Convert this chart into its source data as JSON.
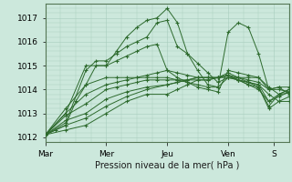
{
  "background_color": "#cce8dc",
  "grid_color": "#a8ccbc",
  "line_color": "#2d6a2d",
  "marker_color": "#2d6a2d",
  "xlabel": "Pression niveau de la mer( hPa )",
  "ylim": [
    1011.8,
    1017.6
  ],
  "yticks": [
    1012,
    1013,
    1014,
    1015,
    1016,
    1017
  ],
  "xlim": [
    0,
    96
  ],
  "xtick_positions": [
    0,
    24,
    48,
    72,
    90
  ],
  "xtick_labels": [
    "Mar",
    "Mer",
    "Jeu",
    "Ven",
    "S"
  ],
  "series": [
    [
      0,
      1012.1,
      4,
      1012.3,
      8,
      1012.5,
      12,
      1013.5,
      16,
      1014.2,
      20,
      1015.0,
      24,
      1015.0,
      28,
      1015.6,
      32,
      1016.2,
      36,
      1016.6,
      40,
      1016.9,
      44,
      1017.0,
      48,
      1017.4,
      52,
      1016.8,
      56,
      1015.5,
      60,
      1014.8,
      64,
      1014.2,
      68,
      1014.1,
      72,
      1016.4,
      76,
      1016.8,
      80,
      1016.6,
      84,
      1015.5,
      88,
      1014.0,
      92,
      1014.1,
      96,
      1013.8
    ],
    [
      0,
      1012.1,
      8,
      1012.6,
      16,
      1014.8,
      20,
      1015.2,
      24,
      1015.2,
      28,
      1015.5,
      32,
      1015.8,
      36,
      1016.0,
      40,
      1016.2,
      44,
      1016.8,
      48,
      1016.9,
      52,
      1015.8,
      56,
      1015.5,
      60,
      1015.1,
      64,
      1014.7,
      68,
      1014.3,
      72,
      1014.5,
      76,
      1014.5,
      80,
      1014.5,
      84,
      1014.5,
      88,
      1014.0,
      92,
      1014.0,
      96,
      1013.9
    ],
    [
      0,
      1012.1,
      8,
      1013.0,
      16,
      1015.0,
      24,
      1015.0,
      28,
      1015.2,
      32,
      1015.4,
      36,
      1015.6,
      40,
      1015.8,
      44,
      1015.9,
      48,
      1014.8,
      52,
      1014.5,
      56,
      1014.3,
      60,
      1014.1,
      64,
      1014.0,
      68,
      1013.9,
      72,
      1014.8,
      76,
      1014.7,
      80,
      1014.6,
      84,
      1014.5,
      88,
      1014.1,
      92,
      1013.8,
      96,
      1013.85
    ],
    [
      0,
      1012.1,
      8,
      1013.2,
      16,
      1014.2,
      24,
      1014.5,
      28,
      1014.5,
      32,
      1014.5,
      36,
      1014.5,
      40,
      1014.5,
      44,
      1014.5,
      48,
      1014.5,
      52,
      1014.4,
      56,
      1014.3,
      60,
      1014.2,
      64,
      1014.1,
      68,
      1014.1,
      72,
      1014.5,
      76,
      1014.4,
      80,
      1014.3,
      84,
      1014.2,
      88,
      1013.8,
      92,
      1013.5,
      96,
      1013.5
    ],
    [
      0,
      1012.1,
      8,
      1013.0,
      16,
      1013.8,
      24,
      1014.2,
      28,
      1014.3,
      32,
      1014.4,
      36,
      1014.5,
      40,
      1014.6,
      44,
      1014.7,
      48,
      1014.8,
      52,
      1014.7,
      56,
      1014.6,
      60,
      1014.5,
      64,
      1014.5,
      68,
      1014.5,
      72,
      1014.6,
      76,
      1014.4,
      80,
      1014.2,
      84,
      1014.1,
      88,
      1013.2,
      92,
      1013.5,
      96,
      1013.7
    ],
    [
      0,
      1012.1,
      8,
      1012.9,
      16,
      1013.4,
      24,
      1014.0,
      28,
      1014.1,
      32,
      1014.2,
      36,
      1014.3,
      40,
      1014.4,
      44,
      1014.4,
      48,
      1014.4,
      52,
      1014.4,
      56,
      1014.4,
      60,
      1014.4,
      64,
      1014.4,
      68,
      1014.5,
      72,
      1014.6,
      76,
      1014.4,
      80,
      1014.2,
      84,
      1014.0,
      88,
      1013.5,
      92,
      1013.7,
      96,
      1013.9
    ],
    [
      0,
      1012.1,
      8,
      1012.7,
      16,
      1013.0,
      24,
      1013.6,
      32,
      1013.9,
      40,
      1014.1,
      48,
      1014.2,
      52,
      1014.3,
      56,
      1014.4,
      60,
      1014.5,
      64,
      1014.5,
      68,
      1014.5,
      72,
      1014.7,
      76,
      1014.5,
      80,
      1014.3,
      84,
      1014.1,
      88,
      1013.3,
      92,
      1013.8,
      96,
      1014.0
    ],
    [
      0,
      1012.1,
      8,
      1012.5,
      16,
      1012.8,
      24,
      1013.3,
      32,
      1013.7,
      40,
      1014.0,
      48,
      1014.2,
      52,
      1014.3,
      56,
      1014.4,
      60,
      1014.5,
      64,
      1014.5,
      68,
      1014.5,
      72,
      1014.6,
      76,
      1014.5,
      80,
      1014.4,
      84,
      1014.3,
      88,
      1014.0,
      92,
      1014.1,
      96,
      1014.1
    ],
    [
      0,
      1012.1,
      8,
      1012.3,
      16,
      1012.5,
      24,
      1013.0,
      32,
      1013.5,
      40,
      1013.8,
      48,
      1013.8,
      52,
      1014.0,
      56,
      1014.2,
      60,
      1014.4,
      64,
      1014.4,
      68,
      1014.5,
      72,
      1014.5,
      76,
      1014.4,
      80,
      1014.3,
      84,
      1014.2,
      88,
      1013.5,
      92,
      1013.8,
      96,
      1014.0
    ]
  ]
}
